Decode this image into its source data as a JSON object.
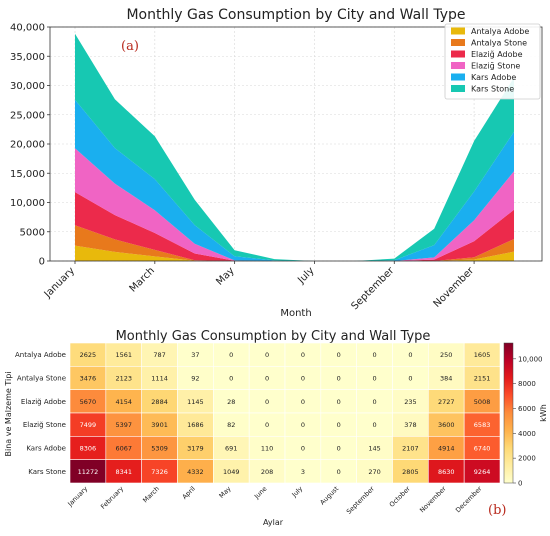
{
  "chart_data": [
    {
      "type": "area",
      "stacked": true,
      "title": "Monthly Gas Consumption by City and Wall Type",
      "panel_label": "(a)",
      "xlabel": "Month",
      "ylabel": "",
      "ylim": [
        0,
        40000
      ],
      "yticks": [
        "0",
        "5000",
        "10,000",
        "15,000",
        "20,000",
        "25,000",
        "30,000",
        "35,000",
        "40,000"
      ],
      "ytick_values": [
        0,
        5000,
        10000,
        15000,
        20000,
        25000,
        30000,
        35000,
        40000
      ],
      "x": [
        "January",
        "February",
        "March",
        "April",
        "May",
        "June",
        "July",
        "August",
        "September",
        "October",
        "November",
        "December"
      ],
      "xtick_labels": [
        "January",
        "March",
        "May",
        "July",
        "September",
        "November"
      ],
      "xtick_index": [
        0,
        2,
        4,
        6,
        8,
        10
      ],
      "grid": true,
      "legend_position": "top-right",
      "series": [
        {
          "name": "Antalya Adobe",
          "color": "#e8b90c",
          "values": [
            2625,
            1561,
            787,
            37,
            0,
            0,
            0,
            0,
            0,
            0,
            250,
            1605
          ]
        },
        {
          "name": "Antalya Stone",
          "color": "#e8791c",
          "values": [
            3476,
            2123,
            1114,
            92,
            0,
            0,
            0,
            0,
            0,
            0,
            384,
            2151
          ]
        },
        {
          "name": "Elaziğ Adobe",
          "color": "#ec2a4b",
          "values": [
            5670,
            4154,
            2884,
            1145,
            28,
            0,
            0,
            0,
            0,
            235,
            2727,
            5008
          ]
        },
        {
          "name": "Elaziğ Stone",
          "color": "#f064c4",
          "values": [
            7499,
            5397,
            3901,
            1686,
            82,
            0,
            0,
            0,
            0,
            378,
            3600,
            6583
          ]
        },
        {
          "name": "Kars Adobe",
          "color": "#1aafef",
          "values": [
            8306,
            6067,
            5309,
            3179,
            691,
            110,
            0,
            0,
            145,
            2107,
            4914,
            6740
          ]
        },
        {
          "name": "Kars Stone",
          "color": "#17c8b2",
          "values": [
            11272,
            8341,
            7326,
            4332,
            1049,
            208,
            3,
            0,
            270,
            2805,
            8630,
            9264
          ]
        }
      ]
    },
    {
      "type": "heatmap",
      "title": "Monthly Gas Consumption by City and Wall Type",
      "panel_label": "(b)",
      "xlabel": "Aylar",
      "ylabel": "Bina ve Malzeme Tipi",
      "columns": [
        "January",
        "February",
        "March",
        "April",
        "May",
        "June",
        "July",
        "August",
        "September",
        "October",
        "November",
        "December"
      ],
      "rows": [
        "Antalya Adobe",
        "Antalya Stone",
        "Elaziğ Adobe",
        "Elaziğ Stone",
        "Kars Adobe",
        "Kars Stone"
      ],
      "values": [
        [
          2625,
          1561,
          787,
          37,
          0,
          0,
          0,
          0,
          0,
          0,
          250,
          1605
        ],
        [
          3476,
          2123,
          1114,
          92,
          0,
          0,
          0,
          0,
          0,
          0,
          384,
          2151
        ],
        [
          5670,
          4154,
          2884,
          1145,
          28,
          0,
          0,
          0,
          0,
          235,
          2727,
          5008
        ],
        [
          7499,
          5397,
          3901,
          1686,
          82,
          0,
          0,
          0,
          0,
          378,
          3600,
          6583
        ],
        [
          8306,
          6067,
          5309,
          3179,
          691,
          110,
          0,
          0,
          145,
          2107,
          4914,
          6740
        ],
        [
          11272,
          8341,
          7326,
          4332,
          1049,
          208,
          3,
          0,
          270,
          2805,
          8630,
          9264
        ]
      ],
      "colorbar": {
        "label": "kWh",
        "min": 0,
        "max": 11272,
        "ticks": [
          "0",
          "2000",
          "4000",
          "6000",
          "8000",
          "10,000"
        ],
        "tick_values": [
          0,
          2000,
          4000,
          6000,
          8000,
          10000
        ],
        "colormap": "YlOrRd"
      }
    }
  ]
}
